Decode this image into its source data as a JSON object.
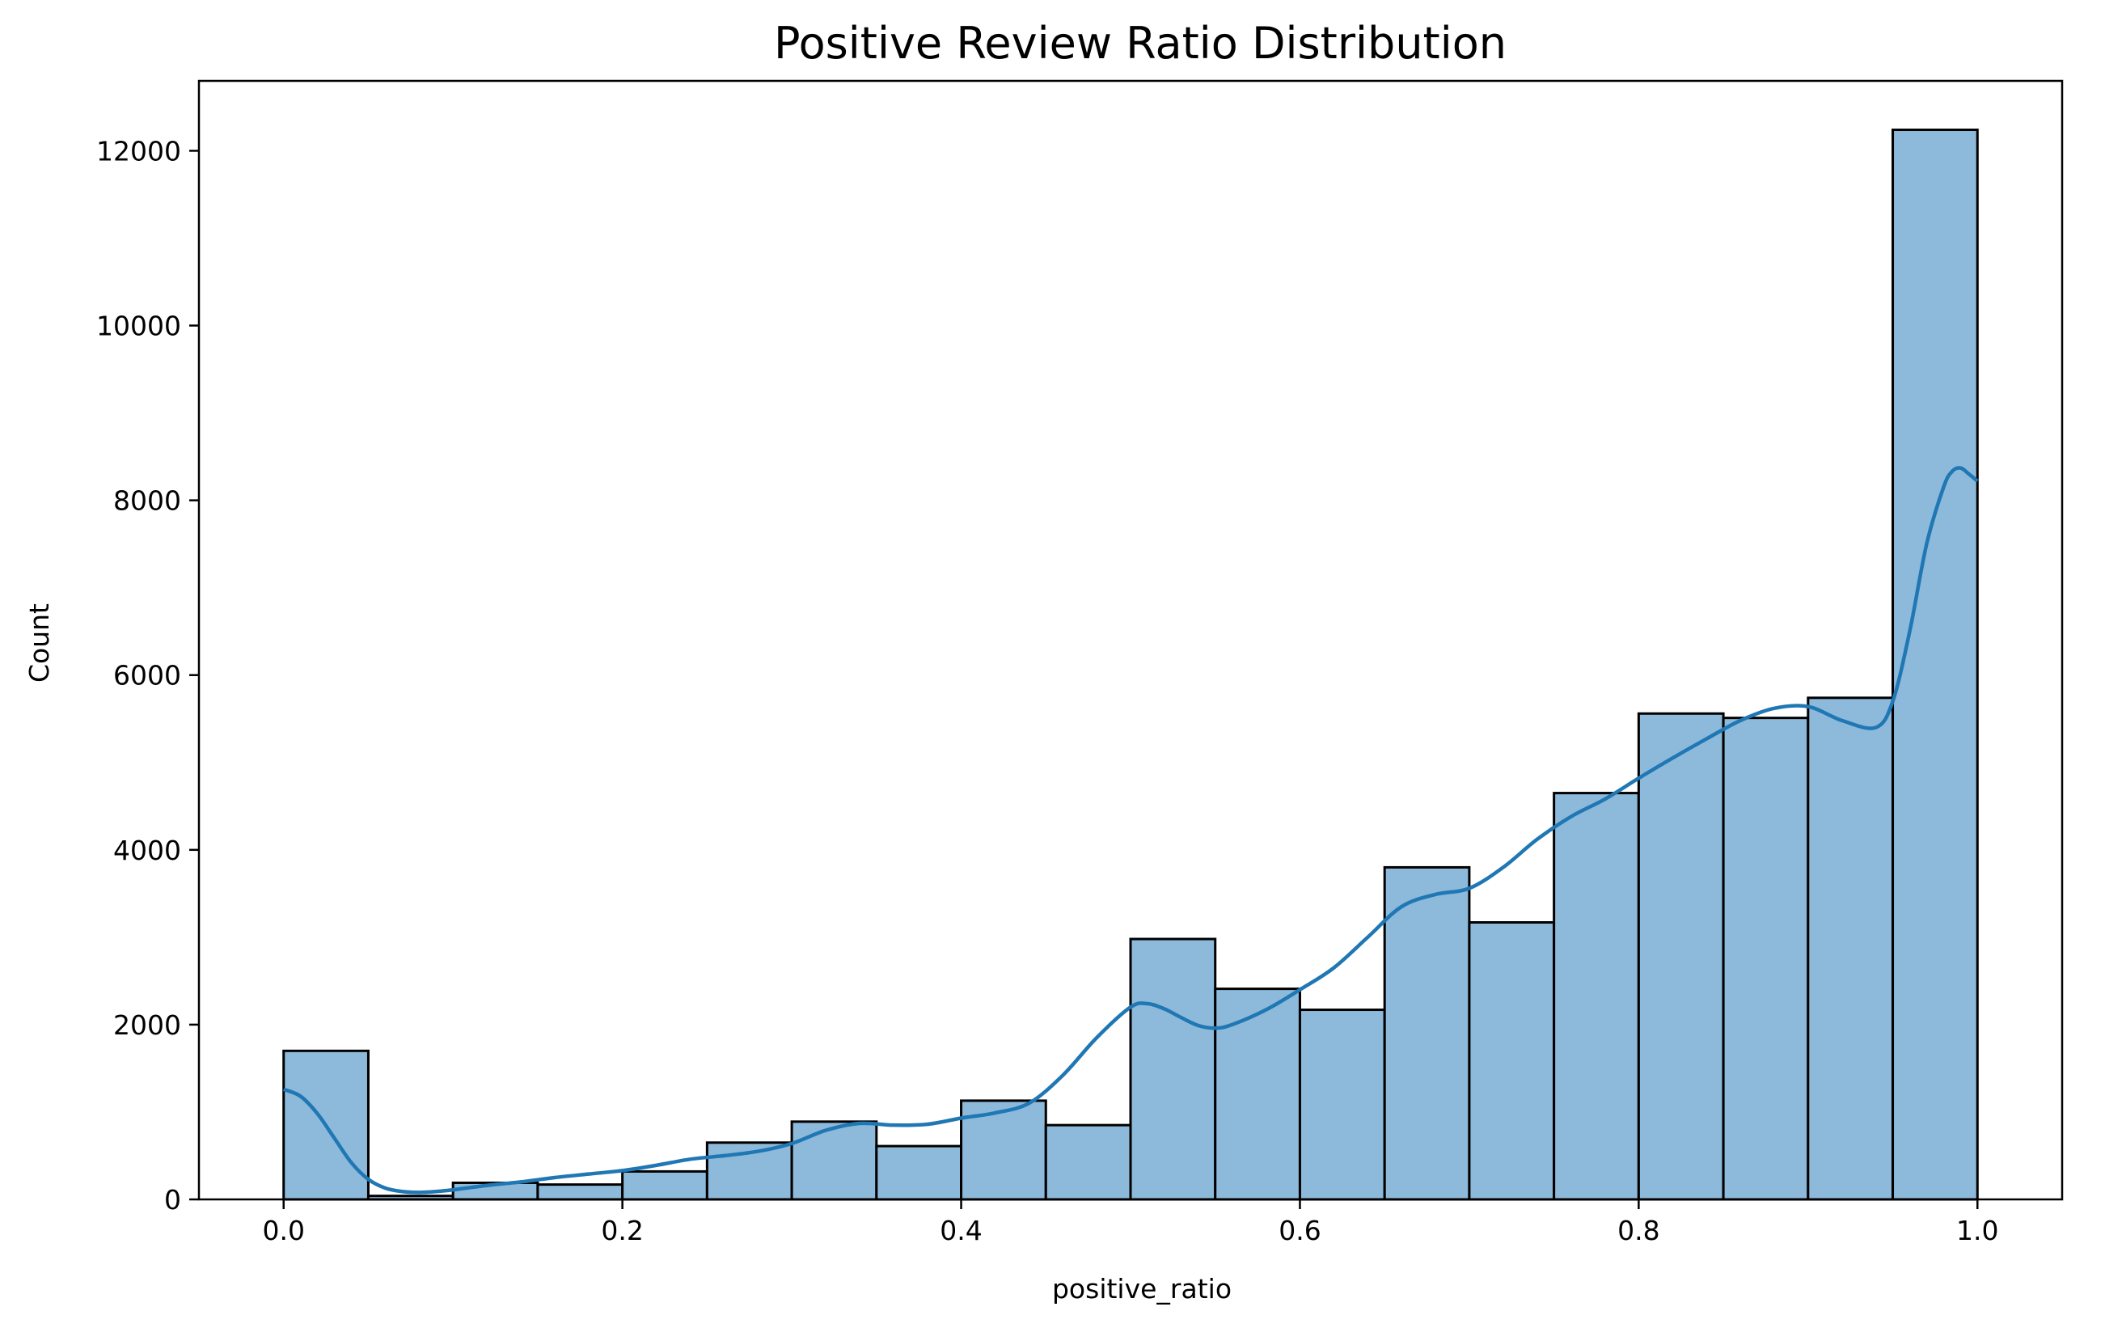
{
  "chart_data": {
    "type": "bar",
    "subtype": "histogram-with-kde",
    "title": "Positive Review Ratio Distribution",
    "xlabel": "positive_ratio",
    "ylabel": "Count",
    "xlim": [
      -0.05,
      1.05
    ],
    "ylim": [
      0,
      12800
    ],
    "xticks": [
      "0.0",
      "0.2",
      "0.4",
      "0.6",
      "0.8",
      "1.0"
    ],
    "yticks": [
      "0",
      "2000",
      "4000",
      "6000",
      "8000",
      "10000",
      "12000"
    ],
    "bin_width": 0.05,
    "bin_edges": [
      0.0,
      0.05,
      0.1,
      0.15,
      0.2,
      0.25,
      0.3,
      0.35,
      0.4,
      0.45,
      0.5,
      0.55,
      0.6,
      0.65,
      0.7,
      0.75,
      0.8,
      0.85,
      0.9,
      0.95,
      1.0
    ],
    "values": [
      1700,
      40,
      190,
      170,
      320,
      650,
      890,
      610,
      1130,
      850,
      2980,
      2410,
      2170,
      3800,
      3170,
      4650,
      5560,
      5510,
      5740,
      12240
    ],
    "kde": {
      "x": [
        0.0,
        0.01,
        0.02,
        0.03,
        0.04,
        0.05,
        0.06,
        0.07,
        0.08,
        0.09,
        0.1,
        0.12,
        0.14,
        0.16,
        0.18,
        0.2,
        0.22,
        0.24,
        0.26,
        0.28,
        0.3,
        0.32,
        0.34,
        0.36,
        0.38,
        0.4,
        0.42,
        0.44,
        0.46,
        0.48,
        0.5,
        0.51,
        0.52,
        0.53,
        0.54,
        0.55,
        0.56,
        0.58,
        0.6,
        0.62,
        0.64,
        0.66,
        0.68,
        0.7,
        0.72,
        0.74,
        0.76,
        0.78,
        0.8,
        0.82,
        0.84,
        0.86,
        0.88,
        0.9,
        0.92,
        0.94,
        0.95,
        0.96,
        0.97,
        0.98,
        0.985,
        0.99,
        0.995,
        1.0
      ],
      "y": [
        1260,
        1180,
        980,
        700,
        420,
        230,
        130,
        90,
        80,
        90,
        110,
        160,
        200,
        250,
        290,
        330,
        390,
        460,
        500,
        550,
        640,
        790,
        870,
        850,
        860,
        930,
        990,
        1100,
        1420,
        1850,
        2200,
        2240,
        2180,
        2080,
        1990,
        1960,
        2000,
        2170,
        2400,
        2650,
        3000,
        3350,
        3490,
        3560,
        3800,
        4120,
        4380,
        4580,
        4820,
        5050,
        5270,
        5480,
        5620,
        5640,
        5480,
        5400,
        5700,
        6500,
        7500,
        8150,
        8330,
        8370,
        8300,
        8220
      ]
    },
    "colors": {
      "bar_fill": "#8db9da",
      "bar_edge": "#000000",
      "kde_line": "#1f77b4"
    },
    "grid": false,
    "legend": "none"
  }
}
